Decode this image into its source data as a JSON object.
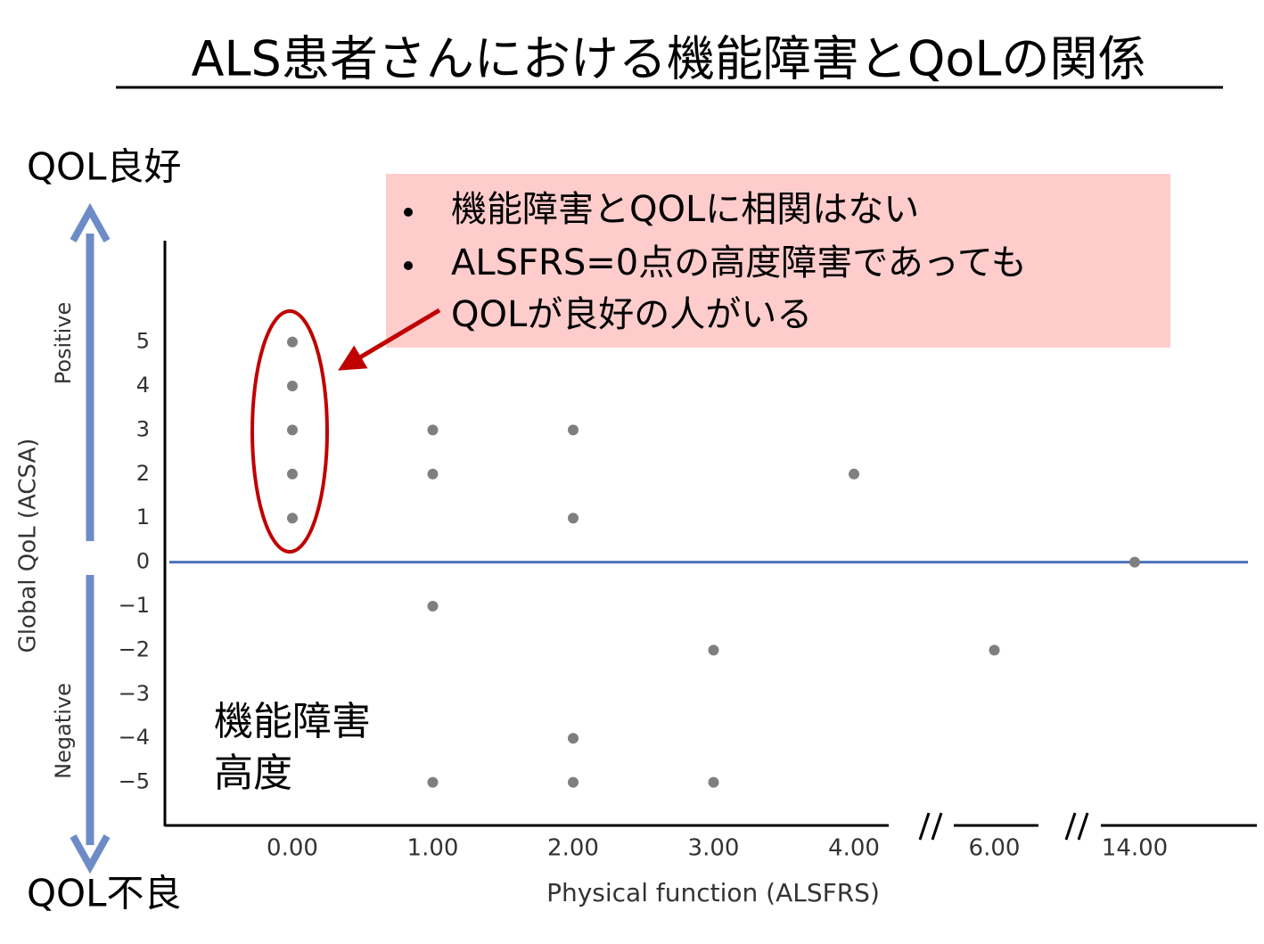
{
  "chart_data": {
    "type": "scatter",
    "title": "ALS患者さんにおける機能障害とQoLの関係",
    "top_label": "QOL良好",
    "bottom_label": "QOL不良",
    "positive_label": "Positive",
    "negative_label": "Negative",
    "ylabel": "Global QoL (ACSA)",
    "xlabel": "Physical function (ALSFRS)",
    "callout": [
      [
        "機能障害とQOLに相関はない"
      ],
      [
        "ALSFRS=0点の高度障害であっても",
        "QOLが良好の人がいる"
      ]
    ],
    "corner_note": [
      "機能障害",
      "高度"
    ],
    "x": [
      0,
      0,
      0,
      0,
      0,
      1,
      1,
      1,
      1,
      2,
      2,
      2,
      2,
      3,
      3,
      4,
      6,
      14
    ],
    "values": [
      5,
      4,
      3,
      2,
      1,
      3,
      2,
      -1,
      -5,
      3,
      1,
      -4,
      -5,
      -2,
      -5,
      2,
      -2,
      0
    ],
    "color": "#7f7f7f",
    "ylim": [
      -6,
      7.3
    ],
    "yticks": [
      {
        "value": -5,
        "label": "−5"
      },
      {
        "value": -4,
        "label": "−4"
      },
      {
        "value": -3,
        "label": "−3"
      },
      {
        "value": -2,
        "label": "−2"
      },
      {
        "value": -1,
        "label": "−1"
      },
      0,
      1,
      2,
      3,
      4,
      5
    ],
    "xticks": [
      {
        "value": 0,
        "label": "0.00"
      },
      {
        "value": 1,
        "label": "1.00"
      },
      {
        "value": 2,
        "label": "2.00"
      },
      {
        "value": 3,
        "label": "3.00"
      },
      {
        "value": 4,
        "label": "4.00"
      },
      {
        "value": 6,
        "label": "6.00"
      },
      {
        "value": 14,
        "label": "14.00"
      }
    ],
    "zero_line_color": "#4a72b8"
  }
}
